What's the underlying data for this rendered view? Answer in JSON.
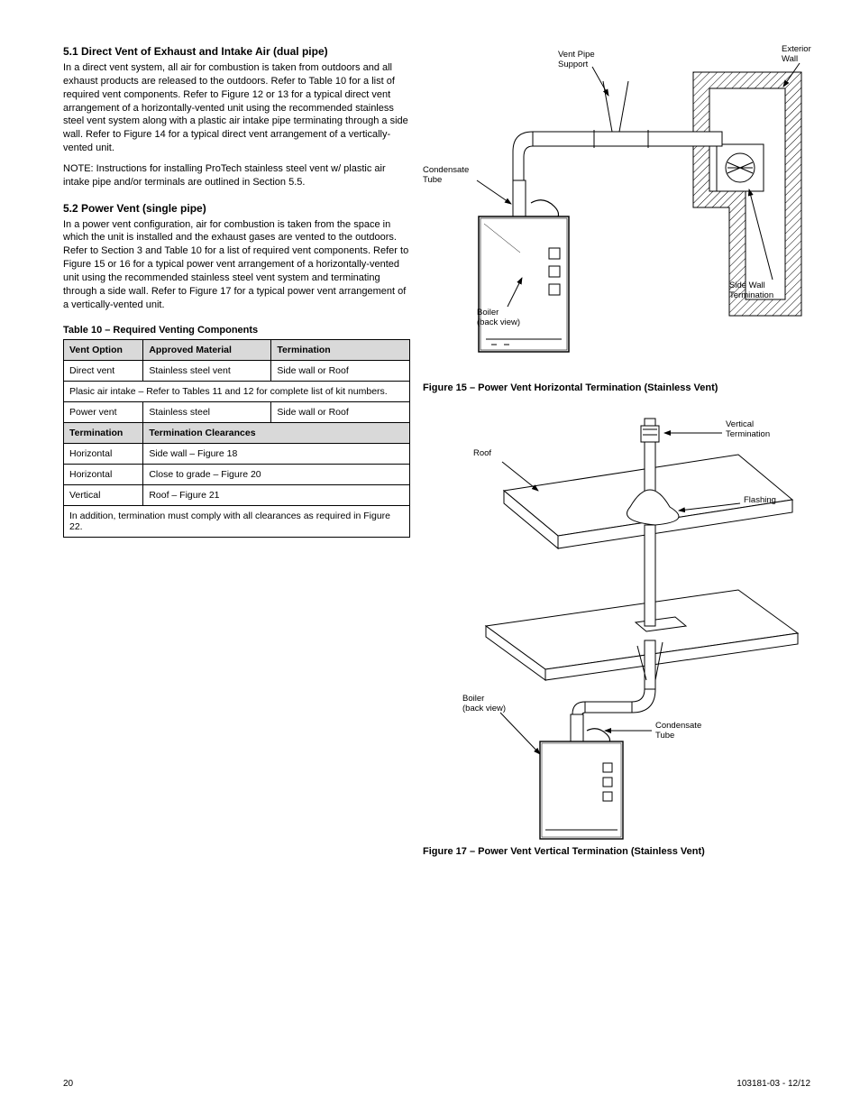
{
  "left": {
    "sec1_title": "5.1 Direct Vent of Exhaust and Intake Air (dual pipe)",
    "sec1_p1": "In a direct vent system, all air for combustion is taken from outdoors and all exhaust products are released to the outdoors. Refer to Table 10 for a list of required vent components. Refer to Figure 12 or 13 for a typical direct vent arrangement of a horizontally-vented unit using the recommended stainless steel vent system along with a plastic air intake pipe terminating through a side wall. Refer to Figure 14 for a typical direct vent arrangement of a vertically-vented unit.",
    "sec1_note": "NOTE: Instructions for installing ProTech stainless steel vent w/ plastic air intake pipe and/or terminals are outlined in Section 5.5.",
    "sec2_title": "5.2 Power Vent (single pipe)",
    "sec2_p1": "In a power vent configuration, air for combustion is taken from the space in which the unit is installed and the exhaust gases are vented to the outdoors. Refer to Section 3 and Table 10 for a list of required vent components. Refer to Figure 15 or 16 for a typical power vent arrangement of a horizontally-vented unit using the recommended stainless steel vent system and terminating through a side wall. Refer to Figure 17 for a typical power vent arrangement of a vertically-vented unit.",
    "table": {
      "title": "Table 10  –  Required Venting Components",
      "head": [
        "Vent Option",
        "Approved Material",
        "Termination"
      ],
      "r1": [
        "Direct vent",
        "Stainless steel vent",
        "Side wall or Roof"
      ],
      "r1_note": "Plasic air intake – Refer to Tables 11 and 12 for complete list of kit numbers.",
      "r2": [
        "Power vent",
        "Stainless steel",
        "Side wall or Roof"
      ],
      "sub_head": [
        "Termination",
        "Termination Clearances"
      ],
      "s1": [
        "Horizontal",
        "Side wall – Figure 18"
      ],
      "s2": [
        "Horizontal",
        "Close to grade – Figure 20"
      ],
      "s3": [
        "Vertical",
        "Roof – Figure 21"
      ],
      "s_note": "In addition, termination must comply with all clearances as required in Figure 22."
    }
  },
  "right": {
    "diag1": {
      "lbl_support": "Vent Pipe\nSupport",
      "lbl_wall": "Exterior\nWall",
      "lbl_ctube": "Condensate\nTube",
      "lbl_boiler": "Boiler\n(back view)",
      "lbl_term": "Side Wall\nTermination",
      "caption": "Figure 15  –  Power Vent Horizontal Termination (Stainless Vent)"
    },
    "diag2": {
      "lbl_roof": "Roof",
      "lbl_top": "Vertical\nTermination",
      "lbl_flash": "Flashing",
      "lbl_boiler": "Boiler\n(back view)",
      "lbl_ctube": "Condensate\nTube",
      "caption": "Figure 17  –  Power Vent Vertical Termination (Stainless Vent)"
    }
  },
  "footer": {
    "page": "20",
    "slug": "103181-03 - 12/12"
  },
  "colors": {
    "text": "#000000",
    "tbl_head_bg": "#d9d9d9",
    "page_bg": "#ffffff",
    "line": "#000000",
    "hatch": "#000000"
  }
}
